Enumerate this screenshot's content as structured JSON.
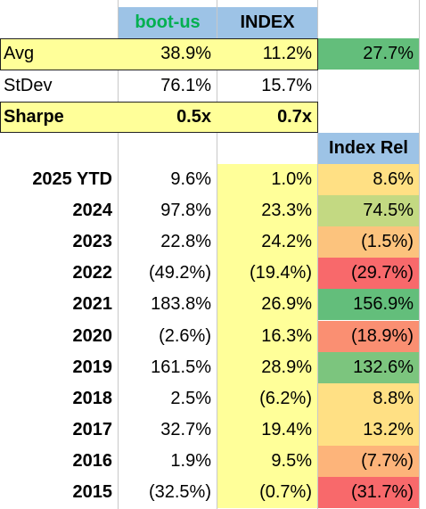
{
  "header": {
    "col1": "boot-us",
    "col2": "INDEX",
    "col1_color": "#00b050"
  },
  "summary": {
    "avg": {
      "label": "Avg",
      "v1": "38.9%",
      "v2": "11.2%",
      "rel": "27.7%",
      "rel_color": "#63be7b"
    },
    "stdev": {
      "label": "StDev",
      "v1": "76.1%",
      "v2": "15.7%"
    },
    "sharpe": {
      "label": "Sharpe",
      "v1": "0.5x",
      "v2": "0.7x"
    }
  },
  "rel_header": "Index Rel",
  "rows": [
    {
      "year": "2025 YTD",
      "v1": "9.6%",
      "v2": "1.0%",
      "rel": "8.6%",
      "color": "#ffe084"
    },
    {
      "year": "2024",
      "v1": "97.8%",
      "v2": "23.3%",
      "rel": "74.5%",
      "color": "#c3d982"
    },
    {
      "year": "2023",
      "v1": "22.8%",
      "v2": "24.2%",
      "rel": "(1.5%)",
      "color": "#fcc37d"
    },
    {
      "year": "2022",
      "v1": "(49.2%)",
      "v2": "(19.4%)",
      "rel": "(29.7%)",
      "color": "#f8696b"
    },
    {
      "year": "2021",
      "v1": "183.8%",
      "v2": "26.9%",
      "rel": "156.9%",
      "color": "#63be7b"
    },
    {
      "year": "2020",
      "v1": "(2.6%)",
      "v2": "16.3%",
      "rel": "(18.9%)",
      "color": "#fa8f72"
    },
    {
      "year": "2019",
      "v1": "161.5%",
      "v2": "28.9%",
      "rel": "132.6%",
      "color": "#7cc57e"
    },
    {
      "year": "2018",
      "v1": "2.5%",
      "v2": "(6.2%)",
      "rel": "8.8%",
      "color": "#ffe084"
    },
    {
      "year": "2017",
      "v1": "32.7%",
      "v2": "19.4%",
      "rel": "13.2%",
      "color": "#ffe084"
    },
    {
      "year": "2016",
      "v1": "1.9%",
      "v2": "9.5%",
      "rel": "(7.7%)",
      "color": "#fdb47a"
    },
    {
      "year": "2015",
      "v1": "(32.5%)",
      "v2": "(0.7%)",
      "rel": "(31.7%)",
      "color": "#f8696b"
    }
  ]
}
